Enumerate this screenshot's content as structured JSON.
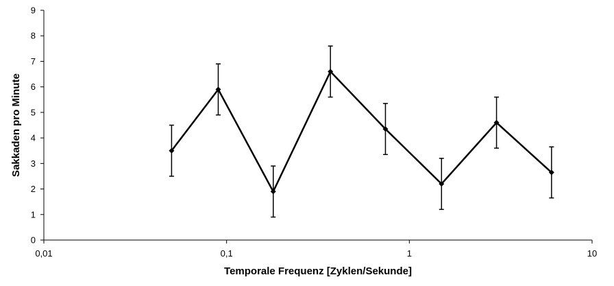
{
  "chart_data": {
    "type": "line",
    "title": "",
    "xlabel": "Temporale Frequenz [Zyklen/Sekunde]",
    "ylabel": "Sakkaden pro Minute",
    "x_scale": "log",
    "xlim": [
      0.01,
      10
    ],
    "ylim": [
      0,
      9
    ],
    "x_ticks": [
      {
        "value": 0.01,
        "label": "0,01"
      },
      {
        "value": 0.1,
        "label": "0,1"
      },
      {
        "value": 1,
        "label": "1"
      },
      {
        "value": 10,
        "label": "10"
      }
    ],
    "y_ticks": [
      0,
      1,
      2,
      3,
      4,
      5,
      6,
      7,
      8,
      9
    ],
    "grid": false,
    "legend": "none",
    "line_color": "#000000",
    "series": [
      {
        "x": [
          0.05,
          0.09,
          0.18,
          0.37,
          0.74,
          1.5,
          3.0,
          6.0
        ],
        "y": [
          3.5,
          5.9,
          1.9,
          6.6,
          4.35,
          2.2,
          4.6,
          2.65
        ],
        "error": [
          1.0,
          1.0,
          1.0,
          1.0,
          1.0,
          1.0,
          1.0,
          1.0
        ]
      }
    ]
  }
}
